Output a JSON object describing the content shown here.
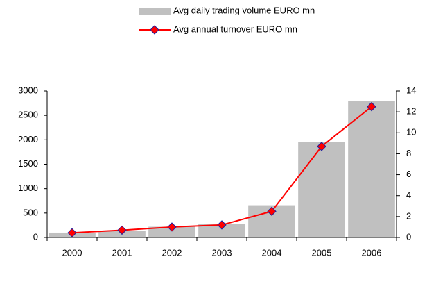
{
  "chart_data": {
    "type": "bar_line",
    "categories": [
      "2000",
      "2001",
      "2002",
      "2003",
      "2004",
      "2005",
      "2006"
    ],
    "series": [
      {
        "name": "Avg daily trading volume EURO mn",
        "type": "bar",
        "color": "#c0c0c0",
        "axis": "y",
        "values": [
          100,
          130,
          220,
          270,
          660,
          1960,
          2800
        ]
      },
      {
        "name": "Avg annual turnover EURO mn",
        "type": "line",
        "color": "#ff0000",
        "marker_color": "#ff0000",
        "marker_edge": "#1f1f9f",
        "axis": "y2",
        "values": [
          0.45,
          0.7,
          1.0,
          1.2,
          2.5,
          8.7,
          12.5
        ]
      }
    ],
    "ylim": [
      0,
      3000
    ],
    "yticks": [
      0,
      500,
      1000,
      1500,
      2000,
      2500,
      3000
    ],
    "y2lim": [
      0,
      14
    ],
    "y2ticks": [
      0,
      2,
      4,
      6,
      8,
      10,
      12,
      14
    ],
    "legend": "top"
  }
}
